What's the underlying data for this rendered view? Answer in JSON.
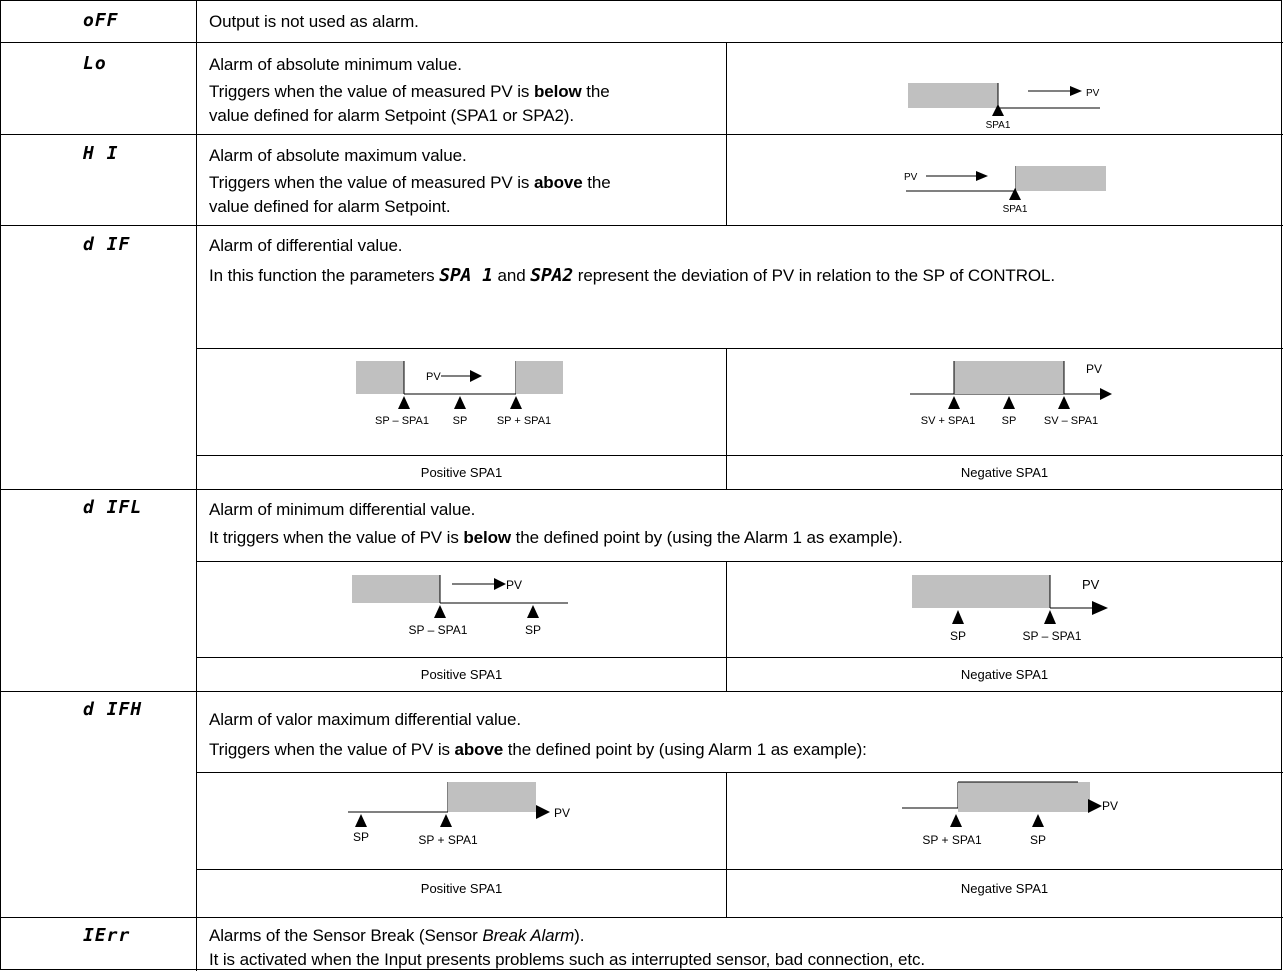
{
  "colors": {
    "border": "#000000",
    "fill": "#c0c0c0"
  },
  "rows": {
    "off": {
      "code": "oFF",
      "text": "Output is not used as alarm."
    },
    "lo": {
      "code": "Lo",
      "line1": "Alarm of absolute minimum value.",
      "line2a": "Triggers when the value of measured PV is ",
      "line2b": "below",
      "line2c": " the",
      "line3": "value defined for alarm Setpoint (SPA1 or SPA2).",
      "diagram": {
        "pv": "PV",
        "spa1": "SPA1"
      }
    },
    "hi": {
      "code": "H I",
      "line1": "Alarm of absolute maximum value.",
      "line2a": "Triggers when the value of measured PV is ",
      "line2b": "above",
      "line2c": " the",
      "line3": "value defined for alarm Setpoint.",
      "diagram": {
        "pv": "PV",
        "spa1": "SPA1"
      }
    },
    "dif": {
      "code": "d IF",
      "line1": "Alarm of differential value.",
      "line2a": "In this function the parameters ",
      "param1": "SPA 1",
      "line2b": " and ",
      "param2": "SPA2",
      "line2c": " represent the deviation of PV in relation to the SP of CONTROL.",
      "pos": {
        "pv": "PV",
        "l1": "SP – SPA1",
        "l2": "SP",
        "l3": "SP + SPA1"
      },
      "neg": {
        "pv": "PV",
        "l1": "SV + SPA1",
        "l2": "SP",
        "l3": "SV – SPA1"
      },
      "cap_pos": "Positive SPA1",
      "cap_neg": "Negative SPA1"
    },
    "difl": {
      "code": "d IFL",
      "line1": "Alarm of minimum differential value.",
      "line2a": "It triggers when the value of PV is ",
      "line2b": "below",
      "line2c": " the defined point by (using the Alarm 1 as example).",
      "pos": {
        "pv": "PV",
        "l1": "SP – SPA1",
        "l2": "SP"
      },
      "neg": {
        "pv": "PV",
        "l1": "SP",
        "l2": "SP – SPA1"
      },
      "cap_pos": "Positive SPA1",
      "cap_neg": "Negative SPA1"
    },
    "difh": {
      "code": "d IFH",
      "line1": "Alarm of valor maximum differential value.",
      "line2a": "Triggers when the value of PV is ",
      "line2b": "above",
      "line2c": " the defined point by (using Alarm 1 as example):",
      "pos": {
        "pv": "PV",
        "l1": "SP",
        "l2": "SP + SPA1"
      },
      "neg": {
        "pv": "PV",
        "l1": "SP + SPA1",
        "l2": "SP"
      },
      "cap_pos": "Positive SPA1",
      "cap_neg": "Negative SPA1"
    },
    "ierr": {
      "code": "IErr",
      "line1a": "Alarms of the Sensor Break (Sensor ",
      "line1b": "Break Alarm",
      "line1c": ").",
      "line2": "It is activated when the Input presents problems such as interrupted sensor, bad connection, etc."
    }
  }
}
